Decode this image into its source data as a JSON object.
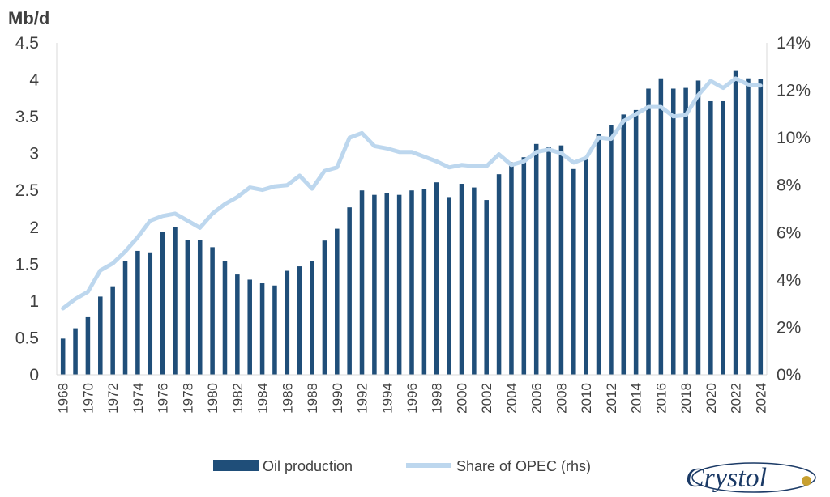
{
  "chart_data": {
    "type": "bar+line",
    "ylabel": "Mb/d",
    "ylim": [
      0,
      4.5
    ],
    "y_ticks": [
      "0",
      "0.5",
      "1",
      "1.5",
      "2",
      "2.5",
      "3",
      "3.5",
      "4",
      "4.5"
    ],
    "y2lim": [
      0,
      14
    ],
    "y2_ticks": [
      "0%",
      "2%",
      "4%",
      "6%",
      "8%",
      "10%",
      "12%",
      "14%"
    ],
    "grid": false,
    "legend_position": "bottom",
    "x": [
      1968,
      1969,
      1970,
      1971,
      1972,
      1973,
      1974,
      1975,
      1976,
      1977,
      1978,
      1979,
      1980,
      1981,
      1982,
      1983,
      1984,
      1985,
      1986,
      1987,
      1988,
      1989,
      1990,
      1991,
      1992,
      1993,
      1994,
      1995,
      1996,
      1997,
      1998,
      1999,
      2000,
      2001,
      2002,
      2003,
      2004,
      2005,
      2006,
      2007,
      2008,
      2009,
      2010,
      2011,
      2012,
      2013,
      2014,
      2015,
      2016,
      2017,
      2018,
      2019,
      2020,
      2021,
      2022,
      2023,
      2024
    ],
    "x_tick_labels": [
      "1968",
      "1970",
      "1972",
      "1974",
      "1976",
      "1978",
      "1980",
      "1982",
      "1984",
      "1986",
      "1988",
      "1990",
      "1992",
      "1994",
      "1996",
      "1998",
      "2000",
      "2002",
      "2004",
      "2006",
      "2008",
      "2010",
      "2012",
      "2014",
      "2016",
      "2018",
      "2020",
      "2022",
      "2024"
    ],
    "series": [
      {
        "name": "Oil production",
        "type": "bar",
        "axis": "left",
        "color": "#1f4e79",
        "values": [
          0.49,
          0.63,
          0.78,
          1.06,
          1.2,
          1.54,
          1.68,
          1.66,
          1.94,
          2.0,
          1.83,
          1.83,
          1.73,
          1.54,
          1.36,
          1.29,
          1.24,
          1.21,
          1.41,
          1.47,
          1.54,
          1.82,
          1.98,
          2.27,
          2.5,
          2.44,
          2.46,
          2.44,
          2.5,
          2.52,
          2.61,
          2.41,
          2.59,
          2.54,
          2.37,
          2.72,
          2.88,
          2.95,
          3.13,
          3.09,
          3.11,
          2.79,
          2.92,
          3.27,
          3.39,
          3.53,
          3.59,
          3.88,
          4.02,
          3.88,
          3.89,
          3.99,
          3.71,
          3.71,
          4.12,
          4.02,
          4.01
        ]
      },
      {
        "name": "Share of OPEC (rhs)",
        "type": "line",
        "axis": "right",
        "color": "#bdd7ee",
        "values": [
          2.8,
          3.2,
          3.5,
          4.4,
          4.7,
          5.2,
          5.8,
          6.5,
          6.7,
          6.8,
          6.5,
          6.2,
          6.8,
          7.2,
          7.5,
          7.9,
          7.8,
          7.95,
          8.0,
          8.4,
          7.85,
          8.6,
          8.75,
          10.0,
          10.2,
          9.65,
          9.55,
          9.4,
          9.4,
          9.2,
          9.0,
          8.75,
          8.85,
          8.8,
          8.8,
          9.3,
          8.85,
          9.0,
          9.4,
          9.5,
          9.35,
          8.95,
          9.15,
          10.0,
          9.95,
          10.7,
          11.0,
          11.3,
          11.3,
          10.9,
          10.95,
          11.8,
          12.4,
          12.1,
          12.5,
          12.25,
          12.2
        ]
      }
    ]
  },
  "logo": {
    "text": "Crystol"
  }
}
